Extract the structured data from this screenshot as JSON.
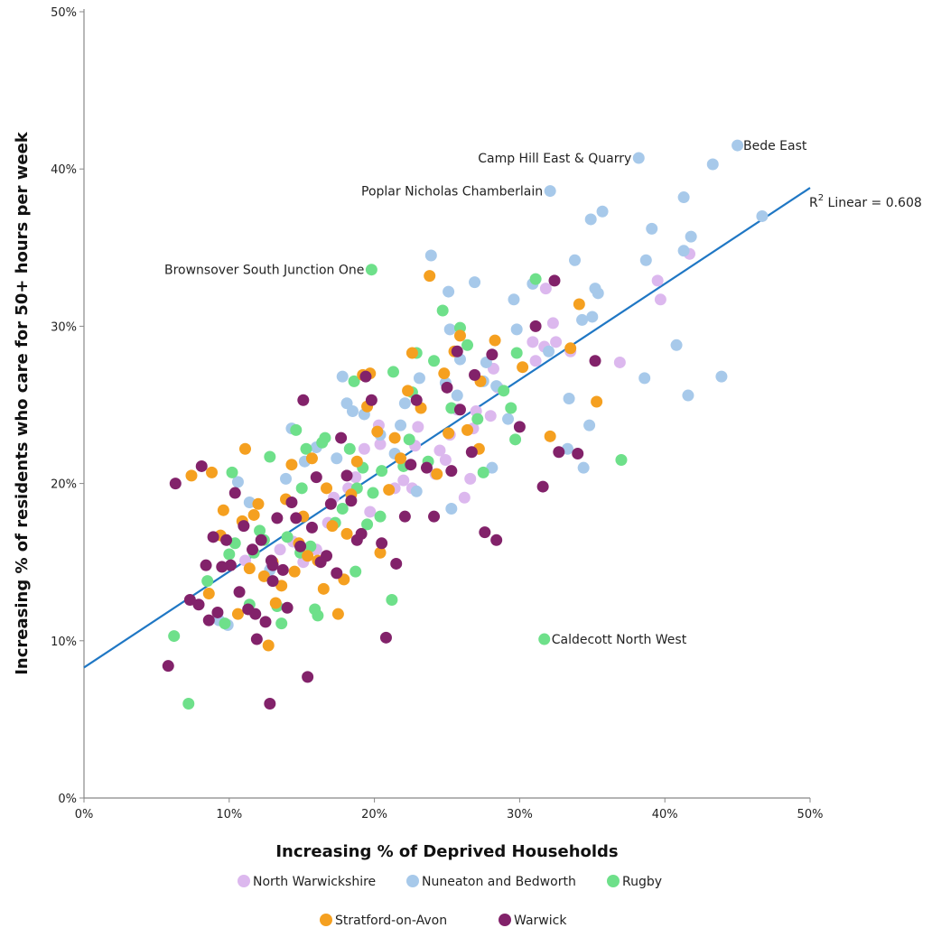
{
  "chart_data": {
    "type": "scatter",
    "xlabel": "Increasing % of Deprived Households",
    "ylabel": "Increasing % of residents who care for 50+ hours per week",
    "xlim": [
      0,
      50
    ],
    "ylim": [
      0,
      50
    ],
    "x_ticks": [
      "0%",
      "10%",
      "20%",
      "30%",
      "40%",
      "50%"
    ],
    "y_ticks": [
      "0%",
      "10%",
      "20%",
      "30%",
      "40%",
      "50%"
    ],
    "grid": false,
    "legend_position": "bottom",
    "fit_line": {
      "label_prefix": "R",
      "label_sup": "2",
      "label_suffix": " Linear = 0.608",
      "intercept": 8.3,
      "slope": 0.61,
      "color": "#1f77c4"
    },
    "annotations": [
      {
        "text": "Bede East",
        "x": 44.9,
        "y": 41.5,
        "side": "right"
      },
      {
        "text": "Camp Hill East & Quarry",
        "x": 38.2,
        "y": 40.7,
        "side": "left"
      },
      {
        "text": "Poplar Nicholas Chamberlain",
        "x": 32.1,
        "y": 38.6,
        "side": "left"
      },
      {
        "text": "Brownsover South Junction One",
        "x": 19.8,
        "y": 33.6,
        "side": "left"
      },
      {
        "text": "Caldecott North West",
        "x": 31.7,
        "y": 10.1,
        "side": "right"
      }
    ],
    "series": [
      {
        "name": "North Warwickshire",
        "color": "#dcb8ee",
        "points": [
          [
            41.7,
            34.6
          ],
          [
            39.7,
            31.7
          ],
          [
            39.5,
            32.9
          ],
          [
            36.9,
            27.7
          ],
          [
            33.5,
            28.4
          ],
          [
            32.3,
            30.2
          ],
          [
            32.5,
            29.0
          ],
          [
            31.8,
            32.4
          ],
          [
            31.1,
            27.8
          ],
          [
            30.9,
            29.0
          ],
          [
            31.7,
            28.7
          ],
          [
            28.2,
            27.3
          ],
          [
            28.5,
            26.1
          ],
          [
            27.0,
            24.6
          ],
          [
            28.0,
            24.3
          ],
          [
            26.8,
            23.5
          ],
          [
            26.2,
            19.1
          ],
          [
            25.7,
            24.7
          ],
          [
            25.2,
            23.1
          ],
          [
            24.5,
            22.1
          ],
          [
            24.9,
            21.5
          ],
          [
            24.2,
            20.6
          ],
          [
            23.0,
            23.6
          ],
          [
            22.8,
            22.4
          ],
          [
            22.0,
            20.2
          ],
          [
            21.4,
            19.7
          ],
          [
            20.4,
            22.5
          ],
          [
            20.3,
            23.7
          ],
          [
            19.3,
            22.2
          ],
          [
            19.7,
            18.2
          ],
          [
            18.7,
            20.4
          ],
          [
            18.2,
            19.7
          ],
          [
            17.2,
            19.1
          ],
          [
            16.8,
            17.5
          ],
          [
            16.0,
            15.8
          ],
          [
            15.1,
            15.0
          ],
          [
            14.4,
            16.3
          ],
          [
            13.5,
            15.8
          ],
          [
            12.9,
            14.7
          ],
          [
            11.1,
            15.1
          ],
          [
            22.6,
            19.7
          ],
          [
            26.6,
            20.3
          ]
        ]
      },
      {
        "name": "Nuneaton and Bedworth",
        "color": "#a7c9ea",
        "points": [
          [
            46.7,
            37.0
          ],
          [
            45.0,
            41.5
          ],
          [
            43.3,
            40.3
          ],
          [
            43.9,
            26.8
          ],
          [
            41.8,
            35.7
          ],
          [
            41.6,
            25.6
          ],
          [
            41.3,
            34.8
          ],
          [
            41.3,
            38.2
          ],
          [
            40.8,
            28.8
          ],
          [
            39.1,
            36.2
          ],
          [
            38.7,
            34.2
          ],
          [
            38.6,
            26.7
          ],
          [
            38.2,
            40.7
          ],
          [
            35.7,
            37.3
          ],
          [
            35.4,
            32.1
          ],
          [
            35.2,
            32.4
          ],
          [
            35.0,
            30.6
          ],
          [
            34.9,
            36.8
          ],
          [
            34.8,
            23.7
          ],
          [
            34.4,
            21.0
          ],
          [
            34.3,
            30.4
          ],
          [
            33.8,
            34.2
          ],
          [
            33.4,
            25.4
          ],
          [
            33.3,
            22.2
          ],
          [
            32.1,
            38.6
          ],
          [
            32.0,
            28.4
          ],
          [
            30.9,
            32.7
          ],
          [
            29.8,
            29.8
          ],
          [
            29.6,
            31.7
          ],
          [
            29.2,
            24.1
          ],
          [
            28.4,
            26.2
          ],
          [
            28.1,
            21.0
          ],
          [
            27.7,
            27.7
          ],
          [
            27.5,
            26.5
          ],
          [
            26.9,
            32.8
          ],
          [
            25.9,
            27.9
          ],
          [
            25.7,
            25.6
          ],
          [
            25.2,
            29.8
          ],
          [
            25.1,
            32.2
          ],
          [
            24.9,
            26.4
          ],
          [
            23.9,
            34.5
          ],
          [
            23.1,
            26.7
          ],
          [
            22.1,
            25.1
          ],
          [
            21.8,
            23.7
          ],
          [
            21.4,
            21.9
          ],
          [
            20.4,
            23.1
          ],
          [
            19.3,
            24.4
          ],
          [
            18.5,
            24.6
          ],
          [
            18.1,
            25.1
          ],
          [
            17.8,
            26.8
          ],
          [
            17.4,
            21.6
          ],
          [
            16.0,
            22.3
          ],
          [
            15.2,
            21.4
          ],
          [
            14.3,
            23.5
          ],
          [
            13.9,
            20.3
          ],
          [
            12.8,
            14.5
          ],
          [
            11.4,
            18.8
          ],
          [
            10.6,
            20.1
          ],
          [
            9.9,
            11.0
          ],
          [
            9.3,
            11.3
          ],
          [
            25.3,
            18.4
          ],
          [
            22.9,
            19.5
          ]
        ]
      },
      {
        "name": "Rugby",
        "color": "#6ee08a",
        "points": [
          [
            37.0,
            21.5
          ],
          [
            31.7,
            10.1
          ],
          [
            31.1,
            33.0
          ],
          [
            29.7,
            22.8
          ],
          [
            29.4,
            24.8
          ],
          [
            29.8,
            28.3
          ],
          [
            28.9,
            25.9
          ],
          [
            27.5,
            20.7
          ],
          [
            27.1,
            24.1
          ],
          [
            26.4,
            28.8
          ],
          [
            25.9,
            29.9
          ],
          [
            25.3,
            24.8
          ],
          [
            24.7,
            31.0
          ],
          [
            24.1,
            27.8
          ],
          [
            22.9,
            28.3
          ],
          [
            22.6,
            25.8
          ],
          [
            22.4,
            22.8
          ],
          [
            22.0,
            21.1
          ],
          [
            21.3,
            27.1
          ],
          [
            21.2,
            12.6
          ],
          [
            20.5,
            20.8
          ],
          [
            19.9,
            19.4
          ],
          [
            19.8,
            33.6
          ],
          [
            19.5,
            17.4
          ],
          [
            19.2,
            21.0
          ],
          [
            18.8,
            19.7
          ],
          [
            18.6,
            26.5
          ],
          [
            18.7,
            14.4
          ],
          [
            18.3,
            22.2
          ],
          [
            17.8,
            18.4
          ],
          [
            17.3,
            17.5
          ],
          [
            16.6,
            22.9
          ],
          [
            16.4,
            22.6
          ],
          [
            16.1,
            11.6
          ],
          [
            15.9,
            12.0
          ],
          [
            15.6,
            16.0
          ],
          [
            15.3,
            22.2
          ],
          [
            15.0,
            19.7
          ],
          [
            14.9,
            15.6
          ],
          [
            14.6,
            23.4
          ],
          [
            14.0,
            16.6
          ],
          [
            13.6,
            11.1
          ],
          [
            13.3,
            12.2
          ],
          [
            12.8,
            21.7
          ],
          [
            12.4,
            16.4
          ],
          [
            12.1,
            17.0
          ],
          [
            11.7,
            15.6
          ],
          [
            11.4,
            12.3
          ],
          [
            10.4,
            16.2
          ],
          [
            10.2,
            20.7
          ],
          [
            10.0,
            15.5
          ],
          [
            9.7,
            11.1
          ],
          [
            8.5,
            13.8
          ],
          [
            7.2,
            6.0
          ],
          [
            6.2,
            10.3
          ],
          [
            20.4,
            17.9
          ],
          [
            23.7,
            21.4
          ]
        ]
      },
      {
        "name": "Stratford-on-Avon",
        "color": "#f5a020",
        "points": [
          [
            35.3,
            25.2
          ],
          [
            34.1,
            31.4
          ],
          [
            33.5,
            28.6
          ],
          [
            32.1,
            23.0
          ],
          [
            30.2,
            27.4
          ],
          [
            28.3,
            29.1
          ],
          [
            27.3,
            26.5
          ],
          [
            27.2,
            22.2
          ],
          [
            26.4,
            23.4
          ],
          [
            25.9,
            29.4
          ],
          [
            25.5,
            28.4
          ],
          [
            25.1,
            23.2
          ],
          [
            24.8,
            27.0
          ],
          [
            24.3,
            20.6
          ],
          [
            23.8,
            33.2
          ],
          [
            23.2,
            24.8
          ],
          [
            22.6,
            28.3
          ],
          [
            22.3,
            25.9
          ],
          [
            21.8,
            21.6
          ],
          [
            21.4,
            22.9
          ],
          [
            21.0,
            19.6
          ],
          [
            20.2,
            23.3
          ],
          [
            19.7,
            27.0
          ],
          [
            19.5,
            24.9
          ],
          [
            19.2,
            26.9
          ],
          [
            18.8,
            21.4
          ],
          [
            18.4,
            19.3
          ],
          [
            18.1,
            16.8
          ],
          [
            17.9,
            13.9
          ],
          [
            17.5,
            11.7
          ],
          [
            17.1,
            17.3
          ],
          [
            16.7,
            19.7
          ],
          [
            16.5,
            13.3
          ],
          [
            16.1,
            15.1
          ],
          [
            15.7,
            21.6
          ],
          [
            15.4,
            15.4
          ],
          [
            15.1,
            17.9
          ],
          [
            14.8,
            16.2
          ],
          [
            14.5,
            14.4
          ],
          [
            14.3,
            21.2
          ],
          [
            13.9,
            19.0
          ],
          [
            13.6,
            13.5
          ],
          [
            13.2,
            12.4
          ],
          [
            13.0,
            15.0
          ],
          [
            12.7,
            9.7
          ],
          [
            12.4,
            14.1
          ],
          [
            12.0,
            18.7
          ],
          [
            11.7,
            18.0
          ],
          [
            11.4,
            14.6
          ],
          [
            11.1,
            22.2
          ],
          [
            10.9,
            17.6
          ],
          [
            10.6,
            11.7
          ],
          [
            9.6,
            18.3
          ],
          [
            8.8,
            20.7
          ],
          [
            8.6,
            13.0
          ],
          [
            7.4,
            20.5
          ],
          [
            9.4,
            16.7
          ],
          [
            20.4,
            15.6
          ]
        ]
      },
      {
        "name": "Warwick",
        "color": "#82226a",
        "points": [
          [
            35.2,
            27.8
          ],
          [
            34.0,
            21.9
          ],
          [
            32.7,
            22.0
          ],
          [
            32.4,
            32.9
          ],
          [
            31.6,
            19.8
          ],
          [
            31.1,
            30.0
          ],
          [
            30.0,
            23.6
          ],
          [
            28.4,
            16.4
          ],
          [
            28.1,
            28.2
          ],
          [
            27.6,
            16.9
          ],
          [
            26.9,
            26.9
          ],
          [
            26.7,
            22.0
          ],
          [
            25.9,
            24.7
          ],
          [
            25.7,
            28.4
          ],
          [
            25.3,
            20.8
          ],
          [
            25.0,
            26.1
          ],
          [
            24.1,
            17.9
          ],
          [
            23.6,
            21.0
          ],
          [
            22.9,
            25.3
          ],
          [
            22.5,
            21.2
          ],
          [
            22.1,
            17.9
          ],
          [
            21.5,
            14.9
          ],
          [
            20.8,
            10.2
          ],
          [
            20.5,
            16.2
          ],
          [
            19.8,
            25.3
          ],
          [
            19.4,
            26.8
          ],
          [
            19.1,
            16.8
          ],
          [
            18.8,
            16.4
          ],
          [
            18.4,
            18.9
          ],
          [
            18.1,
            20.5
          ],
          [
            17.7,
            22.9
          ],
          [
            17.4,
            14.3
          ],
          [
            17.0,
            18.7
          ],
          [
            16.7,
            15.4
          ],
          [
            16.3,
            15.0
          ],
          [
            16.0,
            20.4
          ],
          [
            15.7,
            17.2
          ],
          [
            15.4,
            7.7
          ],
          [
            15.1,
            25.3
          ],
          [
            14.9,
            16.0
          ],
          [
            14.6,
            17.8
          ],
          [
            14.3,
            18.8
          ],
          [
            14.0,
            12.1
          ],
          [
            13.7,
            14.5
          ],
          [
            13.3,
            17.8
          ],
          [
            13.0,
            13.8
          ],
          [
            12.8,
            6.0
          ],
          [
            12.5,
            11.2
          ],
          [
            12.2,
            16.4
          ],
          [
            11.9,
            10.1
          ],
          [
            11.6,
            15.8
          ],
          [
            11.3,
            12.0
          ],
          [
            11.0,
            17.3
          ],
          [
            10.7,
            13.1
          ],
          [
            10.4,
            19.4
          ],
          [
            10.1,
            14.8
          ],
          [
            9.8,
            16.4
          ],
          [
            9.5,
            14.7
          ],
          [
            9.2,
            11.8
          ],
          [
            8.9,
            16.6
          ],
          [
            8.6,
            11.3
          ],
          [
            8.4,
            14.8
          ],
          [
            8.1,
            21.1
          ],
          [
            7.9,
            12.3
          ],
          [
            7.3,
            12.6
          ],
          [
            6.3,
            20.0
          ],
          [
            5.8,
            8.4
          ],
          [
            13.0,
            14.8
          ],
          [
            11.8,
            11.7
          ],
          [
            12.9,
            15.1
          ]
        ]
      }
    ]
  }
}
